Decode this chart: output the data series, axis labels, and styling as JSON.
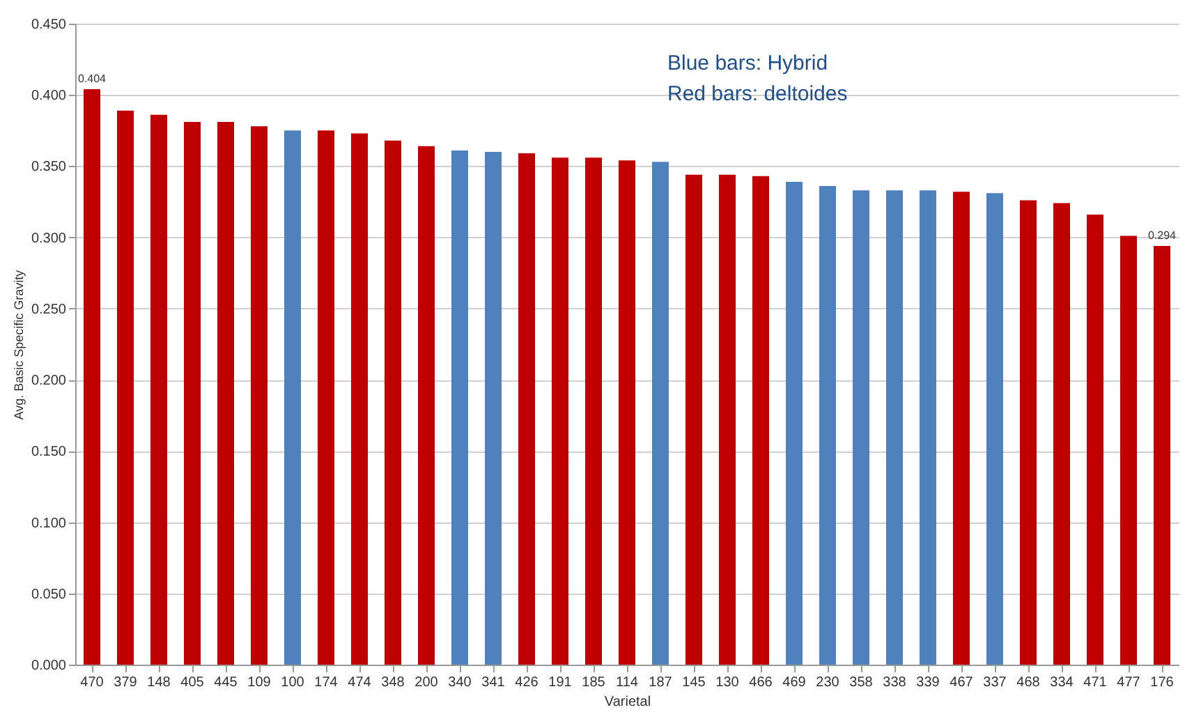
{
  "chart_data": {
    "type": "bar",
    "xlabel": "Varietal",
    "ylabel": "Avg. Basic Specific Gravity",
    "categories": [
      "470",
      "379",
      "148",
      "405",
      "445",
      "109",
      "100",
      "174",
      "474",
      "348",
      "200",
      "340",
      "341",
      "426",
      "191",
      "185",
      "114",
      "187",
      "145",
      "130",
      "466",
      "469",
      "230",
      "358",
      "338",
      "339",
      "467",
      "337",
      "468",
      "334",
      "471",
      "477",
      "176"
    ],
    "values": [
      0.404,
      0.389,
      0.386,
      0.381,
      0.381,
      0.378,
      0.375,
      0.375,
      0.373,
      0.368,
      0.364,
      0.361,
      0.36,
      0.359,
      0.356,
      0.356,
      0.354,
      0.353,
      0.344,
      0.344,
      0.343,
      0.339,
      0.336,
      0.333,
      0.333,
      0.333,
      0.332,
      0.331,
      0.326,
      0.324,
      0.316,
      0.301,
      0.294
    ],
    "colors": [
      "#c00000",
      "#c00000",
      "#c00000",
      "#c00000",
      "#c00000",
      "#c00000",
      "#4f81bd",
      "#c00000",
      "#c00000",
      "#c00000",
      "#c00000",
      "#4f81bd",
      "#4f81bd",
      "#c00000",
      "#c00000",
      "#c00000",
      "#c00000",
      "#4f81bd",
      "#c00000",
      "#c00000",
      "#c00000",
      "#4f81bd",
      "#4f81bd",
      "#4f81bd",
      "#4f81bd",
      "#4f81bd",
      "#c00000",
      "#4f81bd",
      "#c00000",
      "#c00000",
      "#c00000",
      "#c00000",
      "#c00000"
    ],
    "value_labels": [
      "0.404",
      null,
      null,
      null,
      null,
      null,
      null,
      null,
      null,
      null,
      null,
      null,
      null,
      null,
      null,
      null,
      null,
      null,
      null,
      null,
      null,
      null,
      null,
      null,
      null,
      null,
      null,
      null,
      null,
      null,
      null,
      null,
      "0.294"
    ],
    "ylim": [
      0,
      0.45
    ],
    "yticks": [
      {
        "value": 0,
        "label": "0.000"
      },
      {
        "value": 0.05,
        "label": "0.050"
      },
      {
        "value": 0.1,
        "label": "0.100"
      },
      {
        "value": 0.15,
        "label": "0.150"
      },
      {
        "value": 0.2,
        "label": "0.200"
      },
      {
        "value": 0.25,
        "label": "0.250"
      },
      {
        "value": 0.3,
        "label": "0.300"
      },
      {
        "value": 0.35,
        "label": "0.350"
      },
      {
        "value": 0.4,
        "label": "0.400"
      },
      {
        "value": 0.45,
        "label": "0.450"
      }
    ],
    "grid": "y",
    "annotations": [
      "Blue bars: Hybrid",
      "Red bars: deltoides"
    ]
  }
}
